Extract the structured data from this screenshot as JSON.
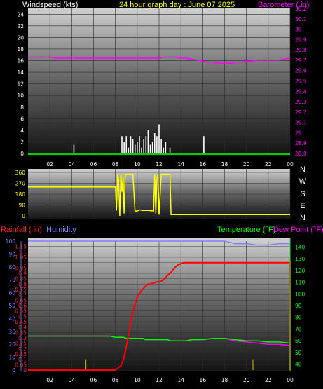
{
  "labels": {
    "windspeed": "Windspeed (kts)",
    "title": "24 hour graph day : June 07 2025",
    "barometer": "Barometer (.in)",
    "rainfall": "Rainfall (.in)",
    "humidity": "Humidity",
    "temperature": "Temperature (°F)",
    "dewpoint": "Dew Point (°F)"
  },
  "colors": {
    "windspeed": "#ffffff",
    "barometer": "#ff00ff",
    "title": "#ffff00",
    "direction": "#ffff00",
    "rainfall": "#ff0000",
    "rain_rate": "#aaaa00",
    "humidity": "#8080ff",
    "temperature": "#00ff00",
    "dewpoint": "#ff00ff",
    "axis_blue": "#6060ff"
  },
  "x_tick_labels": [
    "02",
    "04",
    "06",
    "08",
    "10",
    "12",
    "14",
    "16",
    "18",
    "20",
    "22",
    "00"
  ],
  "compass_labels": [
    "N",
    "W",
    "S",
    "E",
    "N"
  ],
  "chart_data": [
    {
      "type": "line",
      "name": "wind_barometer",
      "x": [
        0,
        0.5,
        1,
        1.5,
        2,
        2.5,
        3,
        3.5,
        4,
        4.5,
        5,
        5.5,
        6,
        6.5,
        7,
        7.5,
        8,
        8.5,
        9,
        9.5,
        10,
        10.5,
        11,
        11.5,
        12,
        12.5,
        13,
        13.5,
        14,
        14.5,
        15,
        15.5,
        16,
        16.5,
        17,
        17.5,
        18,
        18.5,
        19,
        19.5,
        20,
        20.5,
        21,
        21.5,
        22,
        22.5,
        23,
        23.5,
        24
      ],
      "xlim": [
        0,
        24
      ],
      "x_ticks": [
        2,
        4,
        6,
        8,
        10,
        12,
        14,
        16,
        18,
        20,
        22,
        24
      ],
      "wind": {
        "ylim": [
          0,
          25
        ],
        "y_ticks": [
          0,
          2,
          4,
          6,
          8,
          10,
          12,
          14,
          16,
          18,
          20,
          22,
          24
        ],
        "bars_x": [
          4.2,
          8.6,
          8.8,
          9.0,
          9.2,
          9.4,
          9.6,
          9.8,
          10.0,
          10.2,
          10.4,
          10.6,
          10.8,
          11.0,
          11.2,
          11.4,
          11.6,
          11.8,
          12.0,
          12.2,
          12.4,
          12.6,
          13.0,
          16.1
        ],
        "bars_y": [
          1.5,
          3,
          2,
          3,
          1,
          3,
          2.5,
          1.5,
          2,
          3,
          1,
          2.5,
          3,
          4,
          1.5,
          2,
          3.5,
          3,
          5,
          2.5,
          1,
          2,
          1,
          3
        ]
      },
      "barometer": {
        "ylim": [
          28.8,
          30.2
        ],
        "y_ticks": [
          28.8,
          28.9,
          29,
          29.1,
          29.2,
          29.3,
          29.4,
          29.5,
          29.6,
          29.7,
          29.8,
          29.9,
          30,
          30.1,
          30.2
        ],
        "values": [
          29.73,
          29.73,
          29.73,
          29.73,
          29.73,
          29.72,
          29.72,
          29.72,
          29.72,
          29.72,
          29.72,
          29.72,
          29.72,
          29.72,
          29.72,
          29.72,
          29.72,
          29.72,
          29.72,
          29.72,
          29.72,
          29.72,
          29.72,
          29.72,
          29.72,
          29.73,
          29.73,
          29.73,
          29.72,
          29.72,
          29.71,
          29.7,
          29.69,
          29.68,
          29.68,
          29.67,
          29.67,
          29.67,
          29.68,
          29.68,
          29.69,
          29.69,
          29.7,
          29.7,
          29.7,
          29.7,
          29.7,
          29.71,
          29.72
        ]
      }
    },
    {
      "type": "line",
      "name": "wind_direction",
      "ylim": [
        0,
        360
      ],
      "y_ticks": [
        0,
        90,
        180,
        270,
        360
      ],
      "xlim": [
        0,
        24
      ],
      "x": [
        0,
        8.0,
        8.1,
        8.2,
        8.3,
        8.4,
        8.5,
        8.6,
        8.7,
        8.8,
        8.9,
        9.0,
        9.2,
        9.4,
        9.6,
        9.8,
        10.0,
        10.2,
        10.5,
        11.0,
        11.5,
        11.6,
        11.7,
        11.8,
        11.9,
        12.0,
        12.2,
        12.4,
        12.6,
        12.8,
        13.0,
        13.1,
        13.2,
        13.3,
        14.0,
        16,
        18,
        20,
        22,
        24
      ],
      "values": [
        240,
        240,
        45,
        345,
        300,
        0,
        345,
        200,
        320,
        20,
        345,
        345,
        345,
        345,
        345,
        40,
        40,
        50,
        45,
        45,
        40,
        345,
        20,
        300,
        345,
        10,
        345,
        345,
        345,
        345,
        345,
        10,
        10,
        10,
        10,
        10,
        10,
        10,
        10,
        10
      ]
    },
    {
      "type": "line",
      "name": "rain_humidity_temp",
      "xlim": [
        0,
        24
      ],
      "x": [
        0,
        1,
        2,
        3,
        4,
        5,
        6,
        7,
        7.5,
        8,
        8.25,
        8.5,
        8.75,
        9,
        9.25,
        9.5,
        9.75,
        10,
        10.25,
        10.5,
        10.75,
        11,
        11.25,
        11.5,
        11.75,
        12,
        12.25,
        12.5,
        12.75,
        13,
        13.25,
        13.5,
        13.75,
        14,
        14.25,
        14.5,
        15,
        16,
        17,
        18,
        19,
        20,
        21,
        22,
        23,
        24
      ],
      "rainfall": {
        "ylim": [
          0,
          1.2
        ],
        "y_ticks": [
          0,
          0.05,
          0.1,
          0.15,
          0.2,
          0.25,
          0.3,
          0.35,
          0.4,
          0.45,
          0.5,
          0.55,
          0.6,
          0.65,
          0.7,
          0.75,
          0.8,
          0.85,
          0.9,
          0.95,
          1,
          1.05,
          1.1,
          1.15
        ],
        "values": [
          0,
          0,
          0,
          0,
          0,
          0,
          0,
          0,
          0,
          0,
          0.02,
          0.04,
          0.1,
          0.22,
          0.35,
          0.5,
          0.6,
          0.68,
          0.72,
          0.75,
          0.78,
          0.8,
          0.8,
          0.81,
          0.82,
          0.82,
          0.83,
          0.85,
          0.88,
          0.9,
          0.93,
          0.96,
          0.98,
          0.99,
          1,
          1,
          1,
          1,
          1,
          1,
          1,
          1,
          1,
          1,
          1,
          1
        ],
        "rate_x": [
          5.3,
          20.6
        ],
        "rate_values": [
          0.1,
          0.1
        ]
      },
      "humidity": {
        "ylim": [
          0,
          100
        ],
        "y_ticks": [
          0,
          10,
          20,
          30,
          40,
          50,
          60,
          70,
          80,
          90,
          100
        ],
        "values": [
          100,
          100,
          100,
          100,
          100,
          100,
          100,
          100,
          100,
          100,
          100,
          100,
          100,
          100,
          100,
          100,
          100,
          100,
          100,
          100,
          100,
          100,
          100,
          100,
          100,
          100,
          100,
          100,
          100,
          100,
          100,
          100,
          100,
          100,
          100,
          100,
          100,
          100,
          100,
          100,
          98,
          98,
          97,
          97,
          98,
          98
        ]
      },
      "temperature": {
        "ylim": [
          35,
          145
        ],
        "y_ticks": [
          40,
          50,
          60,
          70,
          80,
          90,
          100,
          110,
          120,
          130,
          140
        ],
        "values": [
          64,
          64,
          64,
          64,
          64,
          64,
          64,
          64,
          64,
          63,
          63,
          63,
          63,
          62,
          62,
          62,
          62,
          62,
          62,
          62,
          61,
          61,
          61,
          61,
          61,
          61,
          61,
          61,
          61,
          60,
          60,
          60,
          60,
          60,
          60,
          60,
          61,
          61,
          62,
          62,
          61,
          60,
          60,
          59,
          59,
          58
        ]
      },
      "dewpoint": {
        "values": [
          64,
          64,
          64,
          64,
          64,
          64,
          64,
          64,
          64,
          63,
          63,
          63,
          63,
          62,
          62,
          62,
          62,
          62,
          62,
          62,
          61,
          61,
          61,
          61,
          61,
          61,
          61,
          61,
          61,
          60,
          60,
          60,
          60,
          60,
          60,
          60,
          61,
          61,
          62,
          62,
          60,
          59,
          58,
          57,
          57,
          56
        ]
      }
    }
  ]
}
